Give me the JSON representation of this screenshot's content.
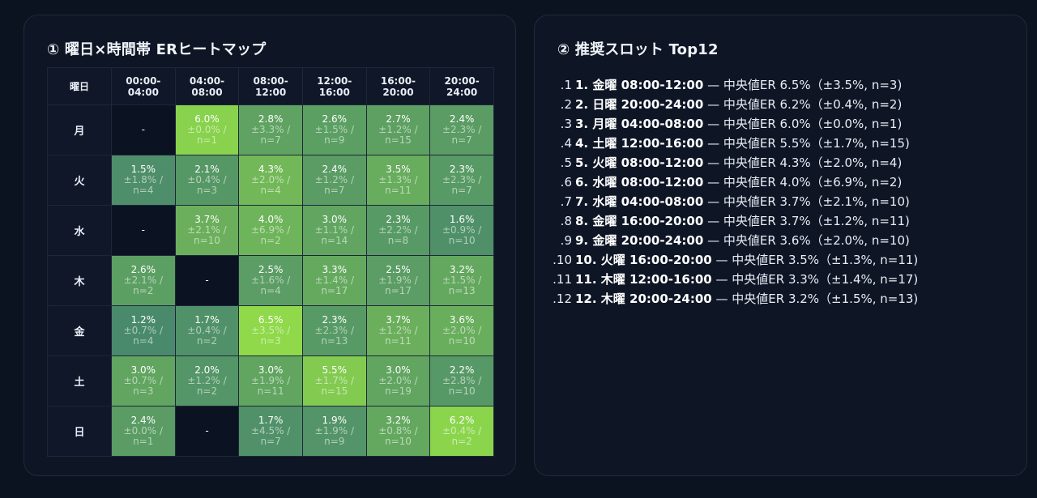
{
  "heatmap": {
    "title": "① 曜日×時間帯 ERヒートマップ",
    "corner_label": "曜日",
    "columns": [
      "00:00-\n04:00",
      "04:00-\n08:00",
      "08:00-\n12:00",
      "12:00-\n16:00",
      "16:00-\n20:00",
      "20:00-\n24:00"
    ],
    "column_lines": [
      [
        "00:00-",
        "04:00"
      ],
      [
        "04:00-",
        "08:00"
      ],
      [
        "08:00-",
        "12:00"
      ],
      [
        "12:00-",
        "16:00"
      ],
      [
        "16:00-",
        "20:00"
      ],
      [
        "20:00-",
        "24:00"
      ]
    ],
    "empty_label": "-",
    "rows": [
      {
        "day": "月",
        "cells": [
          null,
          {
            "er": "6.0%",
            "sd": "±0.0% /",
            "n": "n=1",
            "v": 6.0
          },
          {
            "er": "2.8%",
            "sd": "±3.3% /",
            "n": "n=7",
            "v": 2.8
          },
          {
            "er": "2.6%",
            "sd": "±1.5% /",
            "n": "n=9",
            "v": 2.6
          },
          {
            "er": "2.7%",
            "sd": "±1.2% /",
            "n": "n=15",
            "v": 2.7
          },
          {
            "er": "2.4%",
            "sd": "±2.3% /",
            "n": "n=7",
            "v": 2.4
          }
        ]
      },
      {
        "day": "火",
        "cells": [
          {
            "er": "1.5%",
            "sd": "±1.8% /",
            "n": "n=4",
            "v": 1.5
          },
          {
            "er": "2.1%",
            "sd": "±0.4% /",
            "n": "n=3",
            "v": 2.1
          },
          {
            "er": "4.3%",
            "sd": "±2.0% /",
            "n": "n=4",
            "v": 4.3
          },
          {
            "er": "2.4%",
            "sd": "±1.2% /",
            "n": "n=7",
            "v": 2.4
          },
          {
            "er": "3.5%",
            "sd": "±1.3% /",
            "n": "n=11",
            "v": 3.5
          },
          {
            "er": "2.3%",
            "sd": "±2.3% /",
            "n": "n=7",
            "v": 2.3
          }
        ]
      },
      {
        "day": "水",
        "cells": [
          null,
          {
            "er": "3.7%",
            "sd": "±2.1% /",
            "n": "n=10",
            "v": 3.7
          },
          {
            "er": "4.0%",
            "sd": "±6.9% /",
            "n": "n=2",
            "v": 4.0
          },
          {
            "er": "3.0%",
            "sd": "±1.1% /",
            "n": "n=14",
            "v": 3.0
          },
          {
            "er": "2.3%",
            "sd": "±2.2% /",
            "n": "n=8",
            "v": 2.3
          },
          {
            "er": "1.6%",
            "sd": "±0.9% /",
            "n": "n=10",
            "v": 1.6
          }
        ]
      },
      {
        "day": "木",
        "cells": [
          {
            "er": "2.6%",
            "sd": "±2.1% /",
            "n": "n=2",
            "v": 2.6
          },
          null,
          {
            "er": "2.5%",
            "sd": "±1.6% /",
            "n": "n=4",
            "v": 2.5
          },
          {
            "er": "3.3%",
            "sd": "±1.4% /",
            "n": "n=17",
            "v": 3.3
          },
          {
            "er": "2.5%",
            "sd": "±1.9% /",
            "n": "n=17",
            "v": 2.5
          },
          {
            "er": "3.2%",
            "sd": "±1.5% /",
            "n": "n=13",
            "v": 3.2
          }
        ]
      },
      {
        "day": "金",
        "cells": [
          {
            "er": "1.2%",
            "sd": "±0.7% /",
            "n": "n=4",
            "v": 1.2
          },
          {
            "er": "1.7%",
            "sd": "±0.4% /",
            "n": "n=2",
            "v": 1.7
          },
          {
            "er": "6.5%",
            "sd": "±3.5% /",
            "n": "n=3",
            "v": 6.5
          },
          {
            "er": "2.3%",
            "sd": "±2.3% /",
            "n": "n=13",
            "v": 2.3
          },
          {
            "er": "3.7%",
            "sd": "±1.2% /",
            "n": "n=11",
            "v": 3.7
          },
          {
            "er": "3.6%",
            "sd": "±2.0% /",
            "n": "n=10",
            "v": 3.6
          }
        ]
      },
      {
        "day": "土",
        "cells": [
          {
            "er": "3.0%",
            "sd": "±0.7% /",
            "n": "n=3",
            "v": 3.0
          },
          {
            "er": "2.0%",
            "sd": "±1.2% /",
            "n": "n=2",
            "v": 2.0
          },
          {
            "er": "3.0%",
            "sd": "±1.9% /",
            "n": "n=11",
            "v": 3.0
          },
          {
            "er": "5.5%",
            "sd": "±1.7% /",
            "n": "n=15",
            "v": 5.5
          },
          {
            "er": "3.0%",
            "sd": "±2.0% /",
            "n": "n=19",
            "v": 3.0
          },
          {
            "er": "2.2%",
            "sd": "±2.8% /",
            "n": "n=10",
            "v": 2.2
          }
        ]
      },
      {
        "day": "日",
        "cells": [
          {
            "er": "2.4%",
            "sd": "±0.0% /",
            "n": "n=1",
            "v": 2.4
          },
          null,
          {
            "er": "1.7%",
            "sd": "±4.5% /",
            "n": "n=7",
            "v": 1.7
          },
          {
            "er": "1.9%",
            "sd": "±1.9% /",
            "n": "n=9",
            "v": 1.9
          },
          {
            "er": "3.2%",
            "sd": "±0.8% /",
            "n": "n=10",
            "v": 3.2
          },
          {
            "er": "6.2%",
            "sd": "±0.4% /",
            "n": "n=2",
            "v": 6.2
          }
        ]
      }
    ],
    "colors": {
      "low": "#4a8a6c",
      "high": "#8fd94a",
      "empty": "#0b1322"
    }
  },
  "slots": {
    "title": "② 推奨スロット Top12",
    "items": [
      {
        "num": "1.",
        "bold": "1. 金曜 08:00-12:00",
        "rest": " — 中央値ER 6.5%（±3.5%, n=3)"
      },
      {
        "num": "2.",
        "bold": "2. 日曜 20:00-24:00",
        "rest": " — 中央値ER 6.2%（±0.4%, n=2)"
      },
      {
        "num": "3.",
        "bold": "3. 月曜 04:00-08:00",
        "rest": " — 中央値ER 6.0%（±0.0%, n=1)"
      },
      {
        "num": "4.",
        "bold": "4. 土曜 12:00-16:00",
        "rest": " — 中央値ER 5.5%（±1.7%, n=15)"
      },
      {
        "num": "5.",
        "bold": "5. 火曜 08:00-12:00",
        "rest": " — 中央値ER 4.3%（±2.0%, n=4)"
      },
      {
        "num": "6.",
        "bold": "6. 水曜 08:00-12:00",
        "rest": " — 中央値ER 4.0%（±6.9%, n=2)"
      },
      {
        "num": "7.",
        "bold": "7. 水曜 04:00-08:00",
        "rest": " — 中央値ER 3.7%（±2.1%, n=10)"
      },
      {
        "num": "8.",
        "bold": "8. 金曜 16:00-20:00",
        "rest": " — 中央値ER 3.7%（±1.2%, n=11)"
      },
      {
        "num": "9.",
        "bold": "9. 金曜 20:00-24:00",
        "rest": " — 中央値ER 3.6%（±2.0%, n=10)"
      },
      {
        "num": "10.",
        "bold": "10. 火曜 16:00-20:00",
        "rest": " — 中央値ER 3.5%（±1.3%, n=11)"
      },
      {
        "num": "11.",
        "bold": "11. 木曜 12:00-16:00",
        "rest": " — 中央値ER 3.3%（±1.4%, n=17)"
      },
      {
        "num": "12.",
        "bold": "12. 木曜 20:00-24:00",
        "rest": " — 中央値ER 3.2%（±1.5%, n=13)"
      }
    ]
  }
}
